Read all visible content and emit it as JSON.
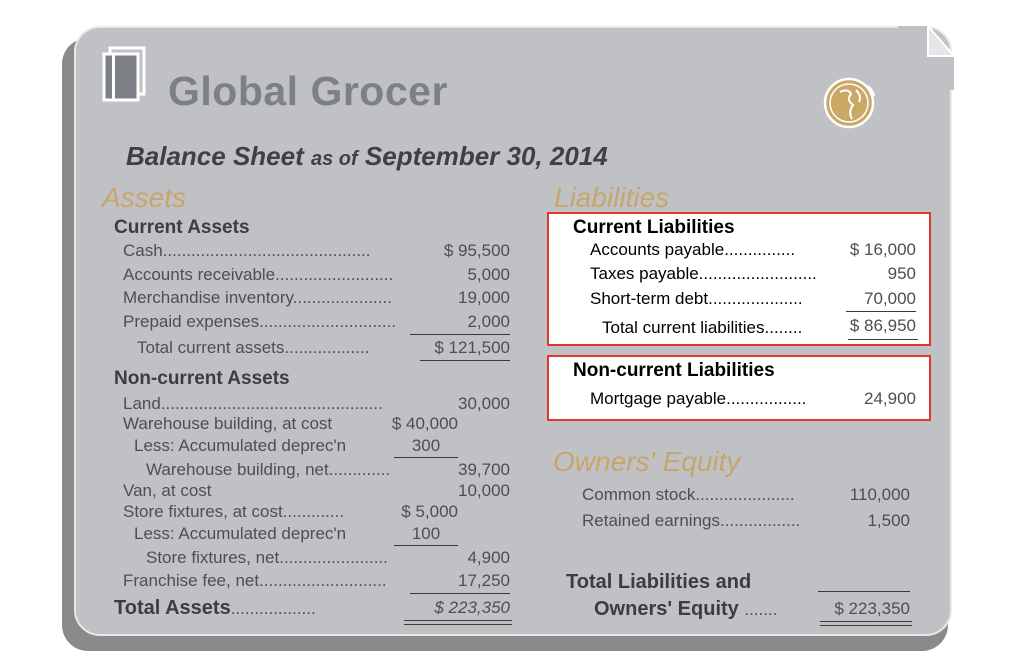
{
  "company": "Global Grocer",
  "statement": {
    "title": "Balance Sheet",
    "asof": "as of",
    "date": "September 30, 2014"
  },
  "assets": {
    "header": "Assets",
    "current": {
      "title": "Current Assets",
      "cash": {
        "label": "Cash............................................",
        "value": "$ 95,500"
      },
      "ar": {
        "label": "Accounts receivable.........................",
        "value": "5,000"
      },
      "inv": {
        "label": "Merchandise inventory.....................",
        "value": "19,000"
      },
      "prepaid": {
        "label": "Prepaid expenses.............................",
        "value": "2,000"
      },
      "total": {
        "label": "Total current assets..................",
        "value": "$ 121,500"
      }
    },
    "noncurrent": {
      "title": "Non-current Assets",
      "land": {
        "label": "Land...............................................",
        "value": "30,000"
      },
      "wh_cost": {
        "label": "Warehouse building, at cost",
        "value": "$ 40,000"
      },
      "wh_dep": {
        "label": "Less: Accumulated deprec'n",
        "value": "300"
      },
      "wh_net": {
        "label": "Warehouse building, net.............",
        "value": "39,700"
      },
      "van": {
        "label": "Van, at cost",
        "value": "10,000"
      },
      "sf_cost": {
        "label": "Store fixtures, at cost.............",
        "value": "$ 5,000"
      },
      "sf_dep": {
        "label": "Less: Accumulated deprec'n",
        "value": "100"
      },
      "sf_net": {
        "label": "Store fixtures, net.......................",
        "value": "4,900"
      },
      "franchise": {
        "label": "Franchise fee, net...........................",
        "value": "17,250"
      }
    },
    "total": {
      "label": "Total Assets",
      "dots": "..................",
      "value": "$ 223,350"
    }
  },
  "liabilities": {
    "header": "Liabilities",
    "current": {
      "title": "Current Liabilities",
      "ap": {
        "label": "Accounts payable...............",
        "value": "$ 16,000"
      },
      "tax": {
        "label": "Taxes payable.........................",
        "value": "950"
      },
      "std": {
        "label": "Short-term debt....................",
        "value": "70,000"
      },
      "total": {
        "label": "Total current liabilities........",
        "value": "$ 86,950"
      }
    },
    "noncurrent": {
      "title": "Non-current Liabilities",
      "mortgage": {
        "label": "Mortgage payable.................",
        "value": "24,900"
      }
    }
  },
  "equity": {
    "header": "Owners' Equity",
    "common": {
      "label": "Common stock.....................",
      "value": "110,000"
    },
    "retained": {
      "label": "Retained earnings.................",
      "value": "1,500"
    }
  },
  "total_le": {
    "line1": "Total Liabilities and",
    "line2": "Owners' Equity",
    "dots": ".......",
    "value": "$ 223,350"
  },
  "colors": {
    "card": "#c0c1c5",
    "gold": "#c7a66a",
    "red_border": "#e0362c"
  }
}
